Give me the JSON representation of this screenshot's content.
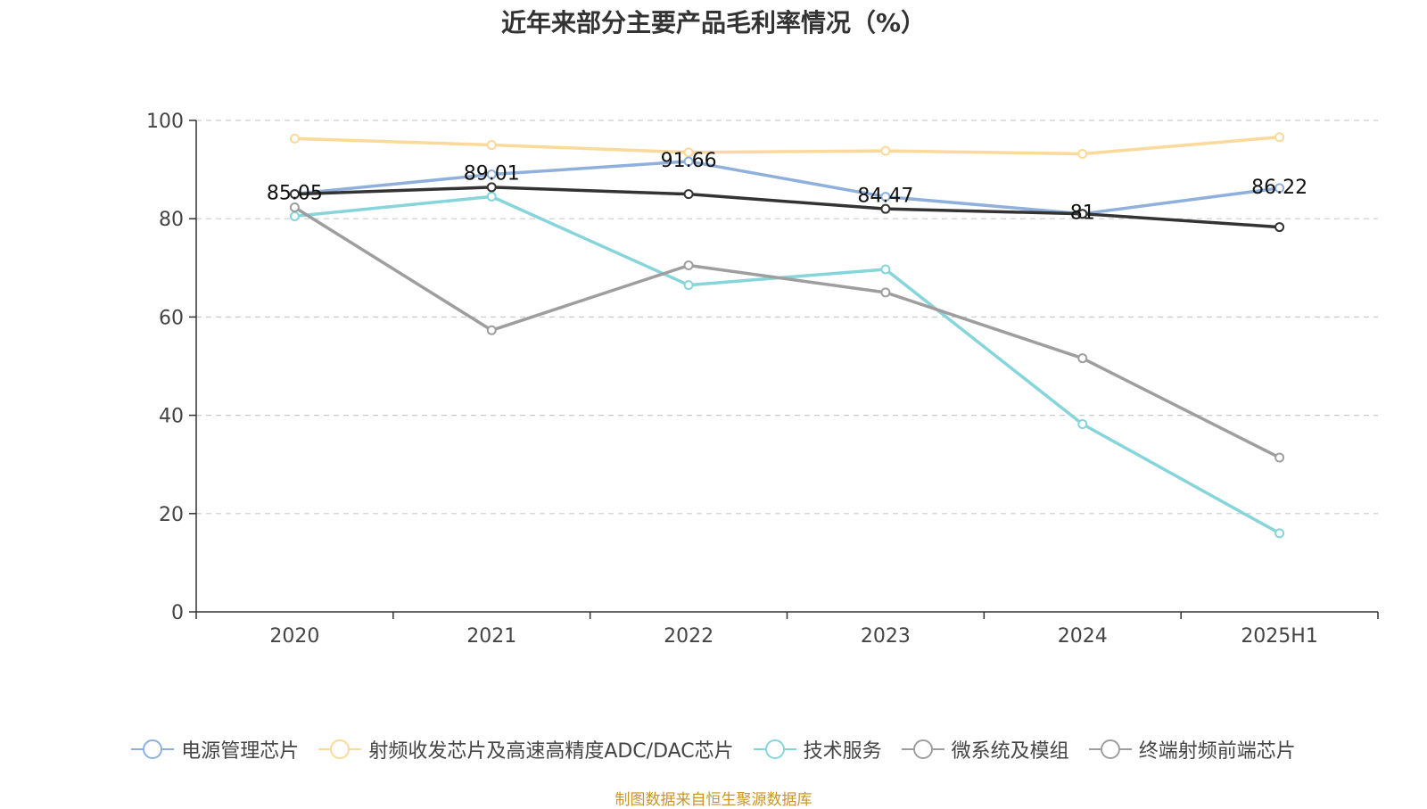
{
  "title": "近年来部分主要产品毛利率情况（%）",
  "source": "制图数据来自恒生聚源数据库",
  "chart_data": {
    "type": "line",
    "categories": [
      "2020",
      "2021",
      "2022",
      "2023",
      "2024",
      "2025H1"
    ],
    "ylim": [
      0,
      100
    ],
    "yticks": [
      0,
      20,
      40,
      60,
      80,
      100
    ],
    "grid": true,
    "legend_position": "bottom",
    "series": [
      {
        "name": "电源管理芯片",
        "color": "#8fb0dc",
        "values": [
          85.05,
          89.01,
          91.66,
          84.47,
          81,
          86.22
        ],
        "labels": [
          "85.05",
          "89.01",
          "91.66",
          "84.47",
          "81",
          "86.22"
        ]
      },
      {
        "name": "射频收发芯片及高速高精度ADC/DAC芯片",
        "color": "#fbd99a",
        "values": [
          96.3,
          95,
          93.5,
          93.8,
          93.2,
          96.6
        ]
      },
      {
        "name": "技术服务",
        "color": "#85d5da",
        "values": [
          80.5,
          84.5,
          66.5,
          69.7,
          38.2,
          16
        ]
      },
      {
        "name": "微系统及模组",
        "color": "#9e9e9e",
        "values": [
          82.3,
          57.3,
          70.5,
          65,
          51.6,
          31.4
        ]
      },
      {
        "name": "终端射频前端芯片",
        "color": "#333333",
        "legend_color": "#9e9e9e",
        "values": [
          85,
          86.4,
          85,
          82,
          81,
          78.3
        ]
      }
    ]
  }
}
